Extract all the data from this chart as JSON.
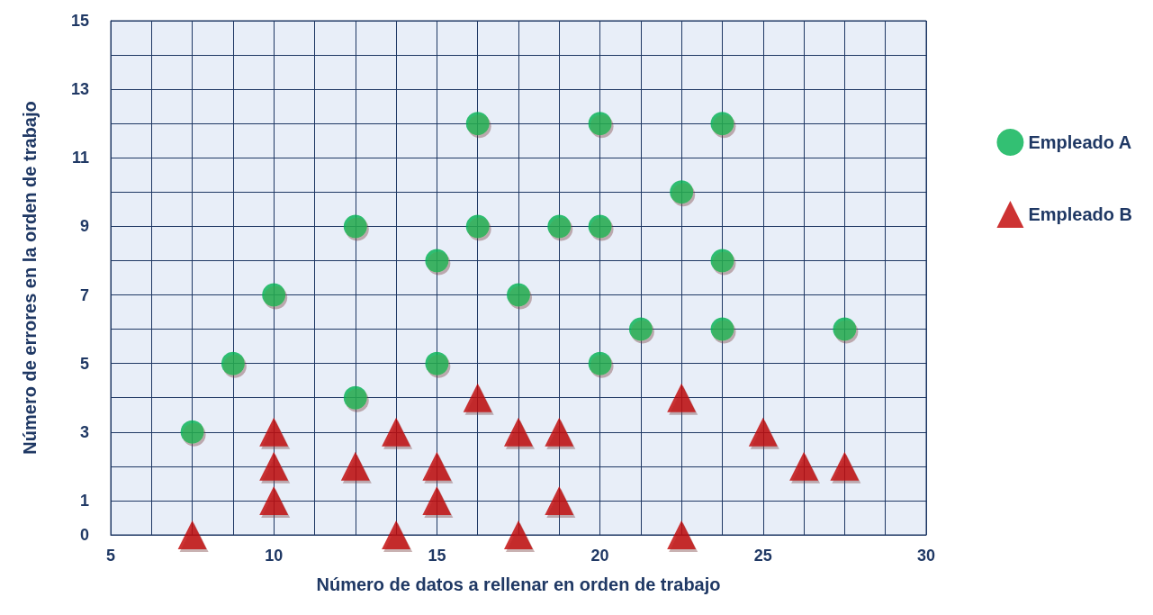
{
  "chart_data": {
    "type": "scatter",
    "xlabel": "Número de datos a rellenar en orden de trabajo",
    "ylabel": "Número de errores en la orden de trabajo",
    "xlim": [
      5,
      30
    ],
    "ylim": [
      0,
      15
    ],
    "xticks": [
      5,
      {
        "value": 6.25,
        "label": null
      },
      {
        "value": 7.5,
        "label": null
      },
      {
        "value": 8.75,
        "label": null
      },
      10,
      {
        "value": 11.25,
        "label": null
      },
      {
        "value": 12.5,
        "label": null
      },
      {
        "value": 13.75,
        "label": null
      },
      15,
      {
        "value": 16.25,
        "label": null
      },
      {
        "value": 17.5,
        "label": null
      },
      {
        "value": 18.75,
        "label": null
      },
      20,
      {
        "value": 21.25,
        "label": null
      },
      {
        "value": 22.5,
        "label": null
      },
      {
        "value": 23.75,
        "label": null
      },
      25,
      {
        "value": 26.25,
        "label": null
      },
      {
        "value": 27.5,
        "label": null
      },
      {
        "value": 28.75,
        "label": null
      },
      30
    ],
    "yticks": [
      0,
      1,
      {
        "value": 2,
        "label": null
      },
      3,
      {
        "value": 4,
        "label": null
      },
      5,
      {
        "value": 6,
        "label": null
      },
      7,
      {
        "value": 8,
        "label": null
      },
      9,
      {
        "value": 10,
        "label": null
      },
      11,
      {
        "value": 12,
        "label": null
      },
      13,
      {
        "value": 14,
        "label": null
      },
      15
    ],
    "grid": true,
    "legend": "right",
    "series": [
      {
        "name": "Empleado A",
        "color": "#00b050",
        "marker": "circle",
        "x": [
          7.5,
          8.75,
          10,
          12.5,
          12.5,
          15,
          15,
          16.25,
          16.25,
          17.5,
          18.75,
          20,
          20,
          20,
          21.25,
          22.5,
          23.75,
          23.75,
          23.75,
          27.5
        ],
        "values": [
          3,
          5,
          7,
          9,
          4,
          8,
          5,
          12,
          9,
          7,
          9,
          12,
          9,
          5,
          6,
          10,
          8,
          6,
          12,
          6
        ]
      },
      {
        "name": "Empleado B",
        "color": "#c00000",
        "marker": "triangle",
        "x": [
          7.5,
          10,
          10,
          10,
          12.5,
          13.75,
          13.75,
          15,
          15,
          16.25,
          17.5,
          17.5,
          18.75,
          18.75,
          22.5,
          22.5,
          25,
          26.25,
          27.5
        ],
        "values": [
          0,
          3,
          2,
          1,
          2,
          3,
          0,
          2,
          1,
          4,
          3,
          0,
          3,
          1,
          4,
          0,
          3,
          2,
          2
        ]
      }
    ]
  }
}
